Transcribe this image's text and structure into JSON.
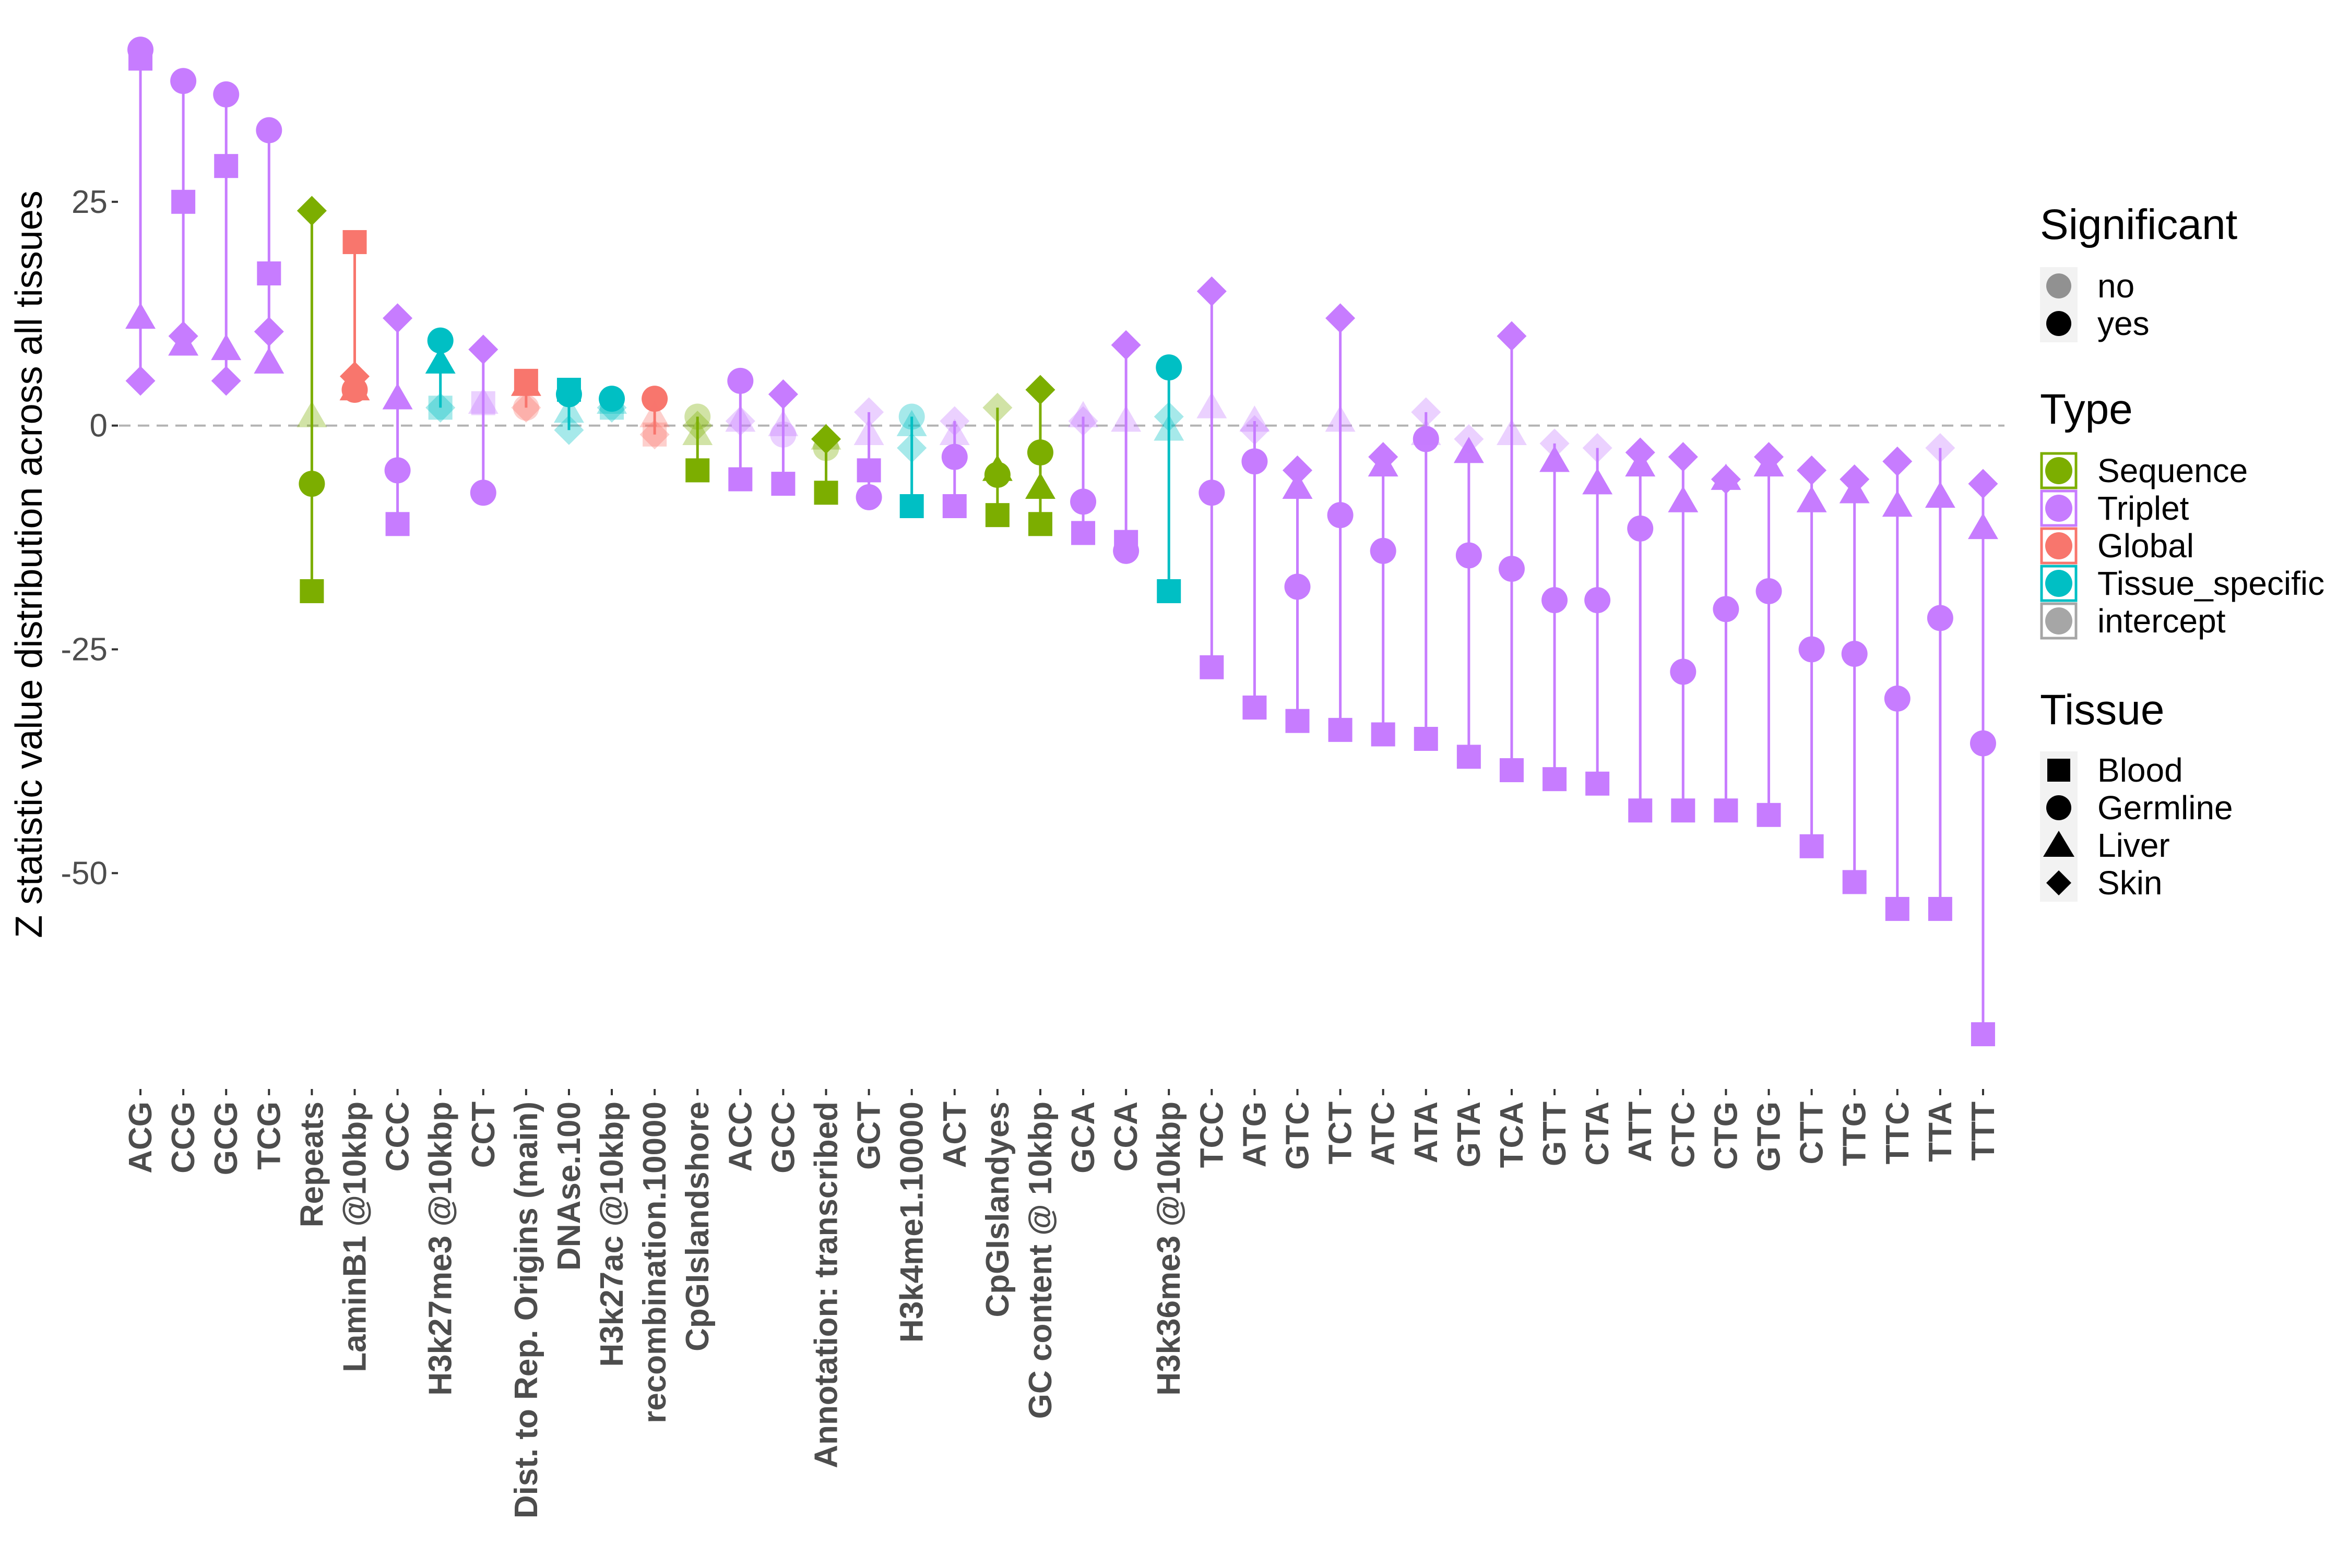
{
  "chart_data": {
    "type": "scatter",
    "ylabel": "Z statistic value distribution across all tissues",
    "xlabel": "",
    "ylim": [
      -74,
      43
    ],
    "yticks": [
      25,
      0,
      -25,
      -50
    ],
    "ytick_labels": [
      "25",
      "0",
      "-25",
      "-50"
    ],
    "reference_line": 0,
    "grid": false,
    "legend_position": "right",
    "type_colors": {
      "Sequence": "#7CAE00",
      "Triplet": "#C77CFF",
      "Global": "#F8766D",
      "Tissue_specific": "#00BFC4",
      "intercept": "#A6A6A6"
    },
    "tissue_shapes": {
      "Blood": "square",
      "Germline": "circle",
      "Liver": "triangle",
      "Skin": "diamond"
    },
    "legends": {
      "significant": {
        "title": "Significant",
        "items": [
          "no",
          "yes"
        ]
      },
      "type": {
        "title": "Type",
        "items": [
          "Sequence",
          "Triplet",
          "Global",
          "Tissue_specific",
          "intercept"
        ]
      },
      "tissue": {
        "title": "Tissue",
        "items": [
          "Blood",
          "Germline",
          "Liver",
          "Skin"
        ]
      }
    },
    "features": [
      {
        "name": "ACG",
        "type": "Triplet",
        "Blood": [
          41,
          true
        ],
        "Germline": [
          42,
          true
        ],
        "Liver": [
          12,
          true
        ],
        "Skin": [
          5,
          true
        ]
      },
      {
        "name": "CCG",
        "type": "Triplet",
        "Blood": [
          25,
          true
        ],
        "Germline": [
          38.5,
          true
        ],
        "Liver": [
          9,
          true
        ],
        "Skin": [
          10,
          true
        ]
      },
      {
        "name": "GCG",
        "type": "Triplet",
        "Blood": [
          29,
          true
        ],
        "Germline": [
          37,
          true
        ],
        "Liver": [
          8.5,
          true
        ],
        "Skin": [
          5,
          true
        ]
      },
      {
        "name": "TCG",
        "type": "Triplet",
        "Blood": [
          17,
          true
        ],
        "Germline": [
          33,
          true
        ],
        "Liver": [
          7,
          true
        ],
        "Skin": [
          10.5,
          true
        ]
      },
      {
        "name": "Repeats",
        "type": "Sequence",
        "Blood": [
          -18.5,
          true
        ],
        "Germline": [
          -6.5,
          true
        ],
        "Liver": [
          1,
          false
        ],
        "Skin": [
          24,
          true
        ]
      },
      {
        "name": "LaminB1 @10kbp",
        "type": "Global",
        "Blood": [
          20.5,
          true
        ],
        "Germline": [
          4,
          true
        ],
        "Liver": [
          4,
          true
        ],
        "Skin": [
          5.5,
          true
        ]
      },
      {
        "name": "CCC",
        "type": "Triplet",
        "Blood": [
          -11,
          true
        ],
        "Germline": [
          -5,
          true
        ],
        "Liver": [
          3,
          true
        ],
        "Skin": [
          12,
          true
        ]
      },
      {
        "name": "H3k27me3 @10kbp",
        "type": "Tissue_specific",
        "Blood": [
          2,
          false
        ],
        "Germline": [
          9.5,
          true
        ],
        "Liver": [
          7,
          true
        ],
        "Skin": [
          2,
          false
        ]
      },
      {
        "name": "CCT",
        "type": "Triplet",
        "Blood": [
          2.5,
          false
        ],
        "Germline": [
          -7.5,
          true
        ],
        "Liver": [
          2.5,
          false
        ],
        "Skin": [
          8.5,
          true
        ]
      },
      {
        "name": "Dist. to Rep. Origins (main)",
        "type": "Global",
        "Blood": [
          5,
          true
        ],
        "Germline": [
          2,
          false
        ],
        "Liver": [
          4.5,
          true
        ],
        "Skin": [
          2,
          false
        ]
      },
      {
        "name": "DNAse.100",
        "type": "Tissue_specific",
        "Blood": [
          4,
          true
        ],
        "Germline": [
          3.5,
          true
        ],
        "Liver": [
          1.5,
          false
        ],
        "Skin": [
          -0.5,
          false
        ]
      },
      {
        "name": "H3k27ac @10kbp",
        "type": "Tissue_specific",
        "Blood": [
          2,
          false
        ],
        "Germline": [
          3,
          true
        ],
        "Liver": [
          2.5,
          false
        ],
        "Skin": [
          2,
          false
        ]
      },
      {
        "name": "recombination.10000",
        "type": "Global",
        "Blood": [
          -1,
          false
        ],
        "Germline": [
          3,
          true
        ],
        "Liver": [
          1,
          false
        ],
        "Skin": [
          -1,
          false
        ]
      },
      {
        "name": "CpGIslandshore",
        "type": "Sequence",
        "Blood": [
          -5,
          true
        ],
        "Germline": [
          1,
          false
        ],
        "Liver": [
          -1,
          false
        ],
        "Skin": [
          0,
          false
        ]
      },
      {
        "name": "ACC",
        "type": "Triplet",
        "Blood": [
          -6,
          true
        ],
        "Germline": [
          5,
          true
        ],
        "Liver": [
          0.5,
          false
        ],
        "Skin": [
          0.5,
          false
        ]
      },
      {
        "name": "GCC",
        "type": "Triplet",
        "Blood": [
          -6.5,
          true
        ],
        "Germline": [
          -1,
          false
        ],
        "Liver": [
          0,
          false
        ],
        "Skin": [
          3.5,
          true
        ]
      },
      {
        "name": "Annotation: transcribed",
        "type": "Sequence",
        "Blood": [
          -7.5,
          true
        ],
        "Germline": [
          -2.5,
          false
        ],
        "Liver": [
          -1.5,
          false
        ],
        "Skin": [
          -1.5,
          true
        ]
      },
      {
        "name": "GCT",
        "type": "Triplet",
        "Blood": [
          -5,
          true
        ],
        "Germline": [
          -8,
          true
        ],
        "Liver": [
          -1,
          false
        ],
        "Skin": [
          1.5,
          false
        ]
      },
      {
        "name": "H3k4me1.10000",
        "type": "Tissue_specific",
        "Blood": [
          -9,
          true
        ],
        "Germline": [
          1,
          false
        ],
        "Liver": [
          0,
          false
        ],
        "Skin": [
          -2.5,
          false
        ]
      },
      {
        "name": "ACT",
        "type": "Triplet",
        "Blood": [
          -9,
          true
        ],
        "Germline": [
          -3.5,
          true
        ],
        "Liver": [
          -1,
          false
        ],
        "Skin": [
          0.5,
          false
        ]
      },
      {
        "name": "CpGIslandyes",
        "type": "Sequence",
        "Blood": [
          -10,
          true
        ],
        "Germline": [
          -5.5,
          true
        ],
        "Liver": [
          -5,
          true
        ],
        "Skin": [
          2,
          false
        ]
      },
      {
        "name": "GC content @ 10kbp",
        "type": "Sequence",
        "Blood": [
          -11,
          true
        ],
        "Germline": [
          -3,
          true
        ],
        "Liver": [
          -7,
          true
        ],
        "Skin": [
          4,
          true
        ]
      },
      {
        "name": "GCA",
        "type": "Triplet",
        "Blood": [
          -12,
          true
        ],
        "Germline": [
          -8.5,
          true
        ],
        "Liver": [
          1,
          false
        ],
        "Skin": [
          0.5,
          false
        ]
      },
      {
        "name": "CCA",
        "type": "Triplet",
        "Blood": [
          -13,
          true
        ],
        "Germline": [
          -14,
          true
        ],
        "Liver": [
          0.5,
          false
        ],
        "Skin": [
          9,
          true
        ]
      },
      {
        "name": "H3k36me3 @10kbp",
        "type": "Tissue_specific",
        "Blood": [
          -18.5,
          true
        ],
        "Germline": [
          6.5,
          true
        ],
        "Liver": [
          -0.5,
          false
        ],
        "Skin": [
          1,
          false
        ]
      },
      {
        "name": "TCC",
        "type": "Triplet",
        "Blood": [
          -27,
          true
        ],
        "Germline": [
          -7.5,
          true
        ],
        "Liver": [
          2,
          false
        ],
        "Skin": [
          15,
          true
        ]
      },
      {
        "name": "ATG",
        "type": "Triplet",
        "Blood": [
          -31.5,
          true
        ],
        "Germline": [
          -4,
          true
        ],
        "Liver": [
          0.5,
          false
        ],
        "Skin": [
          -0.5,
          false
        ]
      },
      {
        "name": "GTC",
        "type": "Triplet",
        "Blood": [
          -33,
          true
        ],
        "Germline": [
          -18,
          true
        ],
        "Liver": [
          -7,
          true
        ],
        "Skin": [
          -5,
          true
        ]
      },
      {
        "name": "TCT",
        "type": "Triplet",
        "Blood": [
          -34,
          true
        ],
        "Germline": [
          -10,
          true
        ],
        "Liver": [
          0.5,
          false
        ],
        "Skin": [
          12,
          true
        ]
      },
      {
        "name": "ATC",
        "type": "Triplet",
        "Blood": [
          -34.5,
          true
        ],
        "Germline": [
          -14,
          true
        ],
        "Liver": [
          -4.5,
          true
        ],
        "Skin": [
          -3.5,
          true
        ]
      },
      {
        "name": "ATA",
        "type": "Triplet",
        "Blood": [
          -35,
          true
        ],
        "Germline": [
          -1.5,
          true
        ],
        "Liver": [
          -1,
          false
        ],
        "Skin": [
          1.5,
          false
        ]
      },
      {
        "name": "GTA",
        "type": "Triplet",
        "Blood": [
          -37,
          true
        ],
        "Germline": [
          -14.5,
          true
        ],
        "Liver": [
          -3,
          true
        ],
        "Skin": [
          -1.5,
          false
        ]
      },
      {
        "name": "TCA",
        "type": "Triplet",
        "Blood": [
          -38.5,
          true
        ],
        "Germline": [
          -16,
          true
        ],
        "Liver": [
          -1,
          false
        ],
        "Skin": [
          10,
          true
        ]
      },
      {
        "name": "GTT",
        "type": "Triplet",
        "Blood": [
          -39.5,
          true
        ],
        "Germline": [
          -19.5,
          true
        ],
        "Liver": [
          -4,
          true
        ],
        "Skin": [
          -2,
          false
        ]
      },
      {
        "name": "CTA",
        "type": "Triplet",
        "Blood": [
          -40,
          true
        ],
        "Germline": [
          -19.5,
          true
        ],
        "Liver": [
          -6.5,
          true
        ],
        "Skin": [
          -2.5,
          false
        ]
      },
      {
        "name": "ATT",
        "type": "Triplet",
        "Blood": [
          -43,
          true
        ],
        "Germline": [
          -11.5,
          true
        ],
        "Liver": [
          -4.5,
          true
        ],
        "Skin": [
          -3,
          true
        ]
      },
      {
        "name": "CTC",
        "type": "Triplet",
        "Blood": [
          -43,
          true
        ],
        "Germline": [
          -27.5,
          true
        ],
        "Liver": [
          -8.5,
          true
        ],
        "Skin": [
          -3.5,
          true
        ]
      },
      {
        "name": "CTG",
        "type": "Triplet",
        "Blood": [
          -43,
          true
        ],
        "Germline": [
          -20.5,
          true
        ],
        "Liver": [
          -6,
          true
        ],
        "Skin": [
          -6,
          true
        ]
      },
      {
        "name": "GTG",
        "type": "Triplet",
        "Blood": [
          -43.5,
          true
        ],
        "Germline": [
          -18.5,
          true
        ],
        "Liver": [
          -4.5,
          true
        ],
        "Skin": [
          -3.5,
          true
        ]
      },
      {
        "name": "CTT",
        "type": "Triplet",
        "Blood": [
          -47,
          true
        ],
        "Germline": [
          -25,
          true
        ],
        "Liver": [
          -8.5,
          true
        ],
        "Skin": [
          -5,
          true
        ]
      },
      {
        "name": "TTG",
        "type": "Triplet",
        "Blood": [
          -51,
          true
        ],
        "Germline": [
          -25.5,
          true
        ],
        "Liver": [
          -7.5,
          true
        ],
        "Skin": [
          -6,
          true
        ]
      },
      {
        "name": "TTC",
        "type": "Triplet",
        "Blood": [
          -54,
          true
        ],
        "Germline": [
          -30.5,
          true
        ],
        "Liver": [
          -9,
          true
        ],
        "Skin": [
          -4,
          true
        ]
      },
      {
        "name": "TTA",
        "type": "Triplet",
        "Blood": [
          -54,
          true
        ],
        "Germline": [
          -21.5,
          true
        ],
        "Liver": [
          -8,
          true
        ],
        "Skin": [
          -2.5,
          false
        ]
      },
      {
        "name": "TTT",
        "type": "Triplet",
        "Blood": [
          -68,
          true
        ],
        "Germline": [
          -35.5,
          true
        ],
        "Liver": [
          -11.5,
          true
        ],
        "Skin": [
          -6.5,
          true
        ]
      }
    ]
  }
}
